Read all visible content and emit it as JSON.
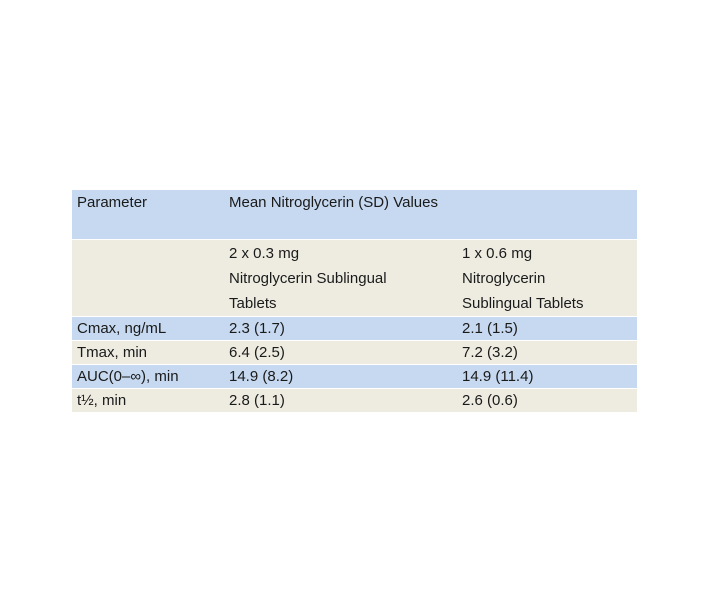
{
  "colors": {
    "row_blue": "#c6d9f0",
    "row_beige": "#eeece1",
    "separator": "#ffffff",
    "text": "#1a1a1a",
    "page_background": "#ffffff"
  },
  "table": {
    "header": {
      "parameter": "Parameter",
      "values_title": "Mean Nitroglycerin (SD) Values"
    },
    "subheader": {
      "dose_2x03": [
        "2 x 0.3 mg",
        "Nitroglycerin Sublingual",
        "Tablets"
      ],
      "dose_1x06": [
        "1 x 0.6 mg",
        "Nitroglycerin",
        "Sublingual Tablets"
      ]
    },
    "rows": [
      {
        "parameter": "Cmax, ng/mL",
        "dose_2x03": "2.3 (1.7)",
        "dose_1x06": "2.1 (1.5)"
      },
      {
        "parameter": "Tmax, min",
        "dose_2x03": "6.4 (2.5)",
        "dose_1x06": "7.2 (3.2)"
      },
      {
        "parameter": "AUC(0–∞), min",
        "dose_2x03": "14.9 (8.2)",
        "dose_1x06": "14.9 (11.4)"
      },
      {
        "parameter": "t½, min",
        "dose_2x03": "2.8 (1.1)",
        "dose_1x06": "2.6 (0.6)"
      }
    ]
  },
  "chart_data": {
    "type": "table",
    "title": "Mean Nitroglycerin (SD) Values",
    "columns": [
      "Parameter",
      "2 x 0.3 mg Nitroglycerin Sublingual Tablets",
      "1 x 0.6 mg Nitroglycerin Sublingual Tablets"
    ],
    "rows": [
      [
        "Cmax, ng/mL",
        "2.3 (1.7)",
        "2.1 (1.5)"
      ],
      [
        "Tmax, min",
        "6.4 (2.5)",
        "7.2 (3.2)"
      ],
      [
        "AUC(0–∞), min",
        "14.9 (8.2)",
        "14.9 (11.4)"
      ],
      [
        "t½, min",
        "2.8 (1.1)",
        "2.6 (0.6)"
      ]
    ]
  }
}
